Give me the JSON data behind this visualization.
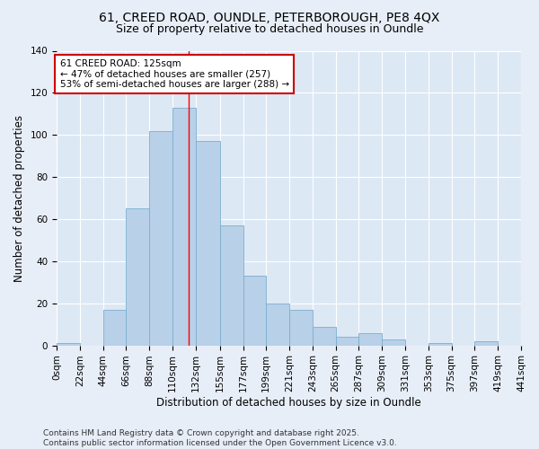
{
  "title_line1": "61, CREED ROAD, OUNDLE, PETERBOROUGH, PE8 4QX",
  "title_line2": "Size of property relative to detached houses in Oundle",
  "xlabel": "Distribution of detached houses by size in Oundle",
  "ylabel": "Number of detached properties",
  "bar_color": "#b8d0e8",
  "bar_edge_color": "#7aafd0",
  "bg_color": "#dde8f5",
  "fig_color": "#e8eef8",
  "grid_color": "#ffffff",
  "annotation_box_color": "#cc0000",
  "annotation_line1": "61 CREED ROAD: 125sqm",
  "annotation_line2": "← 47% of detached houses are smaller (257)",
  "annotation_line3": "53% of semi-detached houses are larger (288) →",
  "red_line_x": 125,
  "bins": [
    0,
    22,
    44,
    66,
    88,
    110,
    132,
    155,
    177,
    199,
    221,
    243,
    265,
    287,
    309,
    331,
    353,
    375,
    397,
    419,
    441
  ],
  "bin_labels": [
    "0sqm",
    "22sqm",
    "44sqm",
    "66sqm",
    "88sqm",
    "110sqm",
    "132sqm",
    "155sqm",
    "177sqm",
    "199sqm",
    "221sqm",
    "243sqm",
    "265sqm",
    "287sqm",
    "309sqm",
    "331sqm",
    "353sqm",
    "375sqm",
    "397sqm",
    "419sqm",
    "441sqm"
  ],
  "counts": [
    1,
    0,
    17,
    65,
    102,
    113,
    97,
    57,
    33,
    20,
    17,
    9,
    4,
    6,
    3,
    0,
    1,
    0,
    2,
    0
  ],
  "ylim": [
    0,
    140
  ],
  "yticks": [
    0,
    20,
    40,
    60,
    80,
    100,
    120,
    140
  ],
  "footer": "Contains HM Land Registry data © Crown copyright and database right 2025.\nContains public sector information licensed under the Open Government Licence v3.0.",
  "title_fontsize": 10,
  "subtitle_fontsize": 9,
  "axis_label_fontsize": 8.5,
  "tick_fontsize": 7.5,
  "annotation_fontsize": 7.5,
  "footer_fontsize": 6.5
}
